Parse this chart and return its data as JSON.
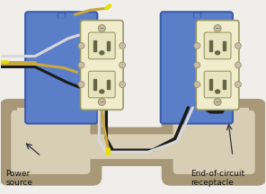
{
  "bg_color": "#f0eeea",
  "conduit_color": "#c8bca0",
  "conduit_edge": "#a89878",
  "conduit_inner": "#d8ceb5",
  "box_fill": "#5b7ec9",
  "box_edge": "#3a5aaa",
  "outlet_body": "#f0eccc",
  "outlet_edge": "#999966",
  "outlet_face": "#e8e4c0",
  "slot_color": "#666644",
  "screw_color": "#ccbbaa",
  "wire_black": "#1a1a1a",
  "wire_white": "#d8d8d8",
  "wire_bare": "#c8a840",
  "wire_yellow_tip": "#e8e000",
  "label_color": "#111111",
  "label_fontsize": 6.5,
  "source_text": "Power\nsource",
  "end_text": "End-of-circuit\nreceptacle"
}
